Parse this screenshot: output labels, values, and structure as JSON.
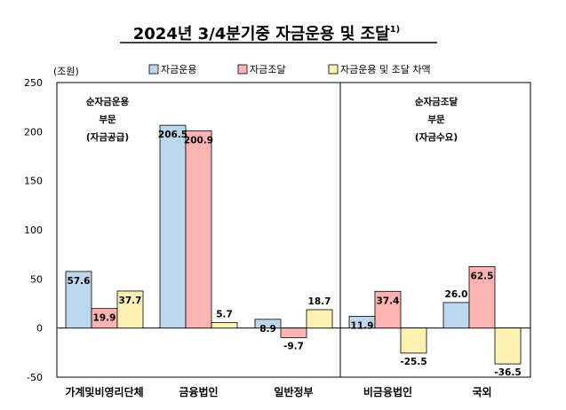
{
  "chart_data": {
    "type": "bar",
    "title": "2024년 3/4분기중 자금운용 및 조달",
    "title_footnote": "1)",
    "ylabel": "(조원)",
    "ylim": [
      -50,
      250
    ],
    "yticks": [
      250,
      200,
      150,
      100,
      50,
      0,
      -50
    ],
    "categories": [
      "가계및비영리단체",
      "금융법인",
      "일반정부",
      "비금융법인",
      "국외"
    ],
    "series": [
      {
        "name": "자금운용",
        "color": "#bdd7ee",
        "values": [
          57.6,
          206.5,
          8.9,
          11.9,
          26.0
        ],
        "labels": [
          "57.6",
          "206.5",
          "8.9",
          "11.9",
          "26.0"
        ]
      },
      {
        "name": "자금조달",
        "color": "#ffb3b3",
        "values": [
          19.9,
          200.9,
          -9.7,
          37.4,
          62.5
        ],
        "labels": [
          "19.9",
          "200.9",
          "-9.7",
          "37.4",
          "62.5"
        ]
      },
      {
        "name": "자금운용 및 조달 차액",
        "color": "#fff2b3",
        "values": [
          37.7,
          5.7,
          18.7,
          -25.5,
          -36.5
        ],
        "labels": [
          "37.7",
          "5.7",
          "18.7",
          "-25.5",
          "-36.5"
        ]
      }
    ],
    "annotations": [
      {
        "lines": [
          "순자금운용",
          "부문",
          "(자금공급)"
        ]
      },
      {
        "lines": [
          "순자금조달",
          "부문",
          "(자금수요)"
        ]
      }
    ],
    "legend_position": "top"
  }
}
